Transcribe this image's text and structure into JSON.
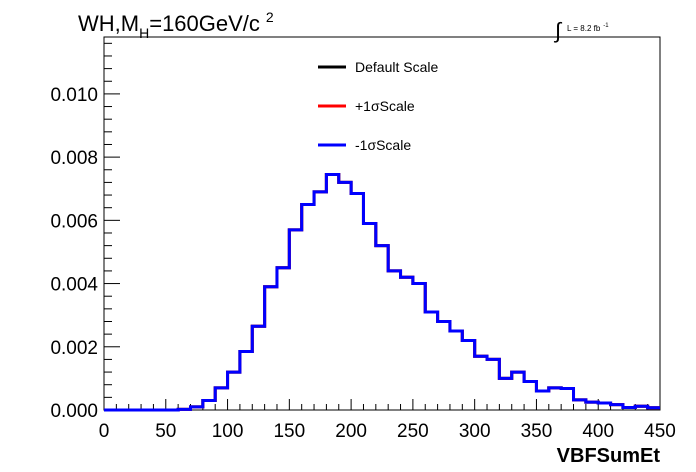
{
  "chart_data": {
    "type": "line",
    "title_parts": {
      "main": "WH,M",
      "sub": "H",
      "rest": "=160GeV/c",
      "sup": "2"
    },
    "lumi_label": {
      "integral": "∫",
      "text": "L = 8.2 fb",
      "sup": "-1"
    },
    "xlabel": "VBFSumEt",
    "ylabel": "",
    "xlim": [
      0,
      450
    ],
    "ylim": [
      0,
      0.0118
    ],
    "x_ticks": [
      "0",
      "50",
      "100",
      "150",
      "200",
      "250",
      "300",
      "350",
      "400",
      "450"
    ],
    "y_ticks": [
      "0.000",
      "0.002",
      "0.004",
      "0.006",
      "0.008",
      "0.010"
    ],
    "bin_edges": [
      0,
      10,
      20,
      30,
      40,
      50,
      60,
      70,
      80,
      90,
      100,
      110,
      120,
      130,
      140,
      150,
      160,
      170,
      180,
      190,
      200,
      210,
      220,
      230,
      240,
      250,
      260,
      270,
      280,
      290,
      300,
      310,
      320,
      330,
      340,
      350,
      360,
      370,
      380,
      390,
      400,
      410,
      420,
      430,
      440,
      450
    ],
    "series": [
      {
        "name": "Default Scale",
        "color": "#000000",
        "values": [
          0.0,
          0.0,
          0.0,
          0.0,
          0.0,
          0.0,
          2e-05,
          0.0001,
          0.0003,
          0.0007,
          0.0012,
          0.00185,
          0.00265,
          0.0039,
          0.0045,
          0.0057,
          0.0065,
          0.0069,
          0.00745,
          0.0072,
          0.00685,
          0.0059,
          0.0052,
          0.0044,
          0.0042,
          0.004,
          0.0031,
          0.0028,
          0.0025,
          0.0022,
          0.0017,
          0.0016,
          0.001,
          0.0012,
          0.0009,
          0.0006,
          0.0007,
          0.00068,
          0.00032,
          0.00025,
          0.00022,
          0.00017,
          8e-05,
          0.00012,
          7e-05
        ]
      },
      {
        "name": "+1σScale",
        "color": "#ff0000",
        "values": [
          0.0,
          0.0,
          0.0,
          0.0,
          0.0,
          0.0,
          2e-05,
          0.0001,
          0.0003,
          0.0007,
          0.0012,
          0.00185,
          0.00265,
          0.0039,
          0.0045,
          0.0057,
          0.0065,
          0.0069,
          0.00745,
          0.0072,
          0.00685,
          0.0059,
          0.0052,
          0.0044,
          0.0042,
          0.004,
          0.0031,
          0.0028,
          0.0025,
          0.0022,
          0.0017,
          0.0016,
          0.001,
          0.0012,
          0.0009,
          0.0006,
          0.0007,
          0.00068,
          0.00032,
          0.00025,
          0.00022,
          0.00017,
          8e-05,
          0.00012,
          7e-05
        ]
      },
      {
        "name": "-1σScale",
        "color": "#0000ff",
        "values": [
          0.0,
          0.0,
          0.0,
          0.0,
          0.0,
          0.0,
          2e-05,
          0.0001,
          0.0003,
          0.0007,
          0.0012,
          0.00185,
          0.00265,
          0.0039,
          0.0045,
          0.0057,
          0.0065,
          0.0069,
          0.00745,
          0.0072,
          0.00685,
          0.0059,
          0.0052,
          0.0044,
          0.0042,
          0.004,
          0.0031,
          0.0028,
          0.0025,
          0.0022,
          0.0017,
          0.0016,
          0.001,
          0.0012,
          0.0009,
          0.0006,
          0.0007,
          0.00068,
          0.00032,
          0.00025,
          0.00022,
          0.00017,
          8e-05,
          0.00012,
          7e-05
        ]
      }
    ],
    "legend_position": "top-center",
    "grid": false
  }
}
